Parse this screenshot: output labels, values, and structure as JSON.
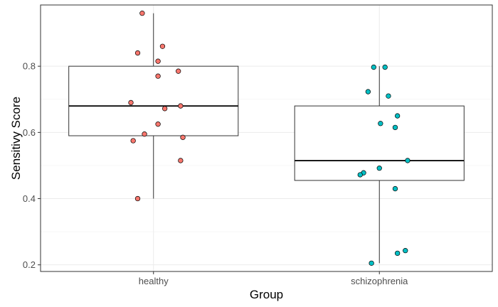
{
  "chart_data": {
    "type": "boxplot",
    "xlabel": "Group",
    "ylabel": "Sensitivy Score",
    "ylim": [
      0.18,
      0.985
    ],
    "yticks": [
      0.2,
      0.4,
      0.6,
      0.8
    ],
    "grid": true,
    "legend": "none",
    "categories": [
      "healthy",
      "schizophrenia"
    ],
    "groups": [
      {
        "category": "healthy",
        "color": "#F8766D",
        "box": {
          "q1": 0.59,
          "median": 0.68,
          "q3": 0.8,
          "whisker_low": 0.4,
          "whisker_high": 0.96
        },
        "points": [
          {
            "jitter": -0.05,
            "value": 0.96
          },
          {
            "jitter": 0.04,
            "value": 0.86
          },
          {
            "jitter": -0.07,
            "value": 0.84
          },
          {
            "jitter": 0.02,
            "value": 0.815
          },
          {
            "jitter": 0.11,
            "value": 0.785
          },
          {
            "jitter": 0.02,
            "value": 0.77
          },
          {
            "jitter": -0.1,
            "value": 0.69
          },
          {
            "jitter": 0.12,
            "value": 0.68
          },
          {
            "jitter": 0.05,
            "value": 0.672
          },
          {
            "jitter": 0.02,
            "value": 0.625
          },
          {
            "jitter": -0.04,
            "value": 0.595
          },
          {
            "jitter": 0.13,
            "value": 0.585
          },
          {
            "jitter": -0.09,
            "value": 0.575
          },
          {
            "jitter": 0.12,
            "value": 0.515
          },
          {
            "jitter": -0.07,
            "value": 0.4
          }
        ]
      },
      {
        "category": "schizophrenia",
        "color": "#00BFC4",
        "box": {
          "q1": 0.455,
          "median": 0.515,
          "q3": 0.68,
          "whisker_low": 0.205,
          "whisker_high": 0.8
        },
        "points": [
          {
            "jitter": -0.025,
            "value": 0.797
          },
          {
            "jitter": 0.025,
            "value": 0.797
          },
          {
            "jitter": -0.05,
            "value": 0.723
          },
          {
            "jitter": 0.04,
            "value": 0.71
          },
          {
            "jitter": 0.08,
            "value": 0.65
          },
          {
            "jitter": 0.005,
            "value": 0.627
          },
          {
            "jitter": 0.07,
            "value": 0.615
          },
          {
            "jitter": 0.125,
            "value": 0.515
          },
          {
            "jitter": 0.0,
            "value": 0.492
          },
          {
            "jitter": -0.07,
            "value": 0.478
          },
          {
            "jitter": -0.085,
            "value": 0.472
          },
          {
            "jitter": 0.07,
            "value": 0.43
          },
          {
            "jitter": 0.115,
            "value": 0.243
          },
          {
            "jitter": 0.08,
            "value": 0.235
          },
          {
            "jitter": -0.035,
            "value": 0.205
          }
        ]
      }
    ]
  }
}
